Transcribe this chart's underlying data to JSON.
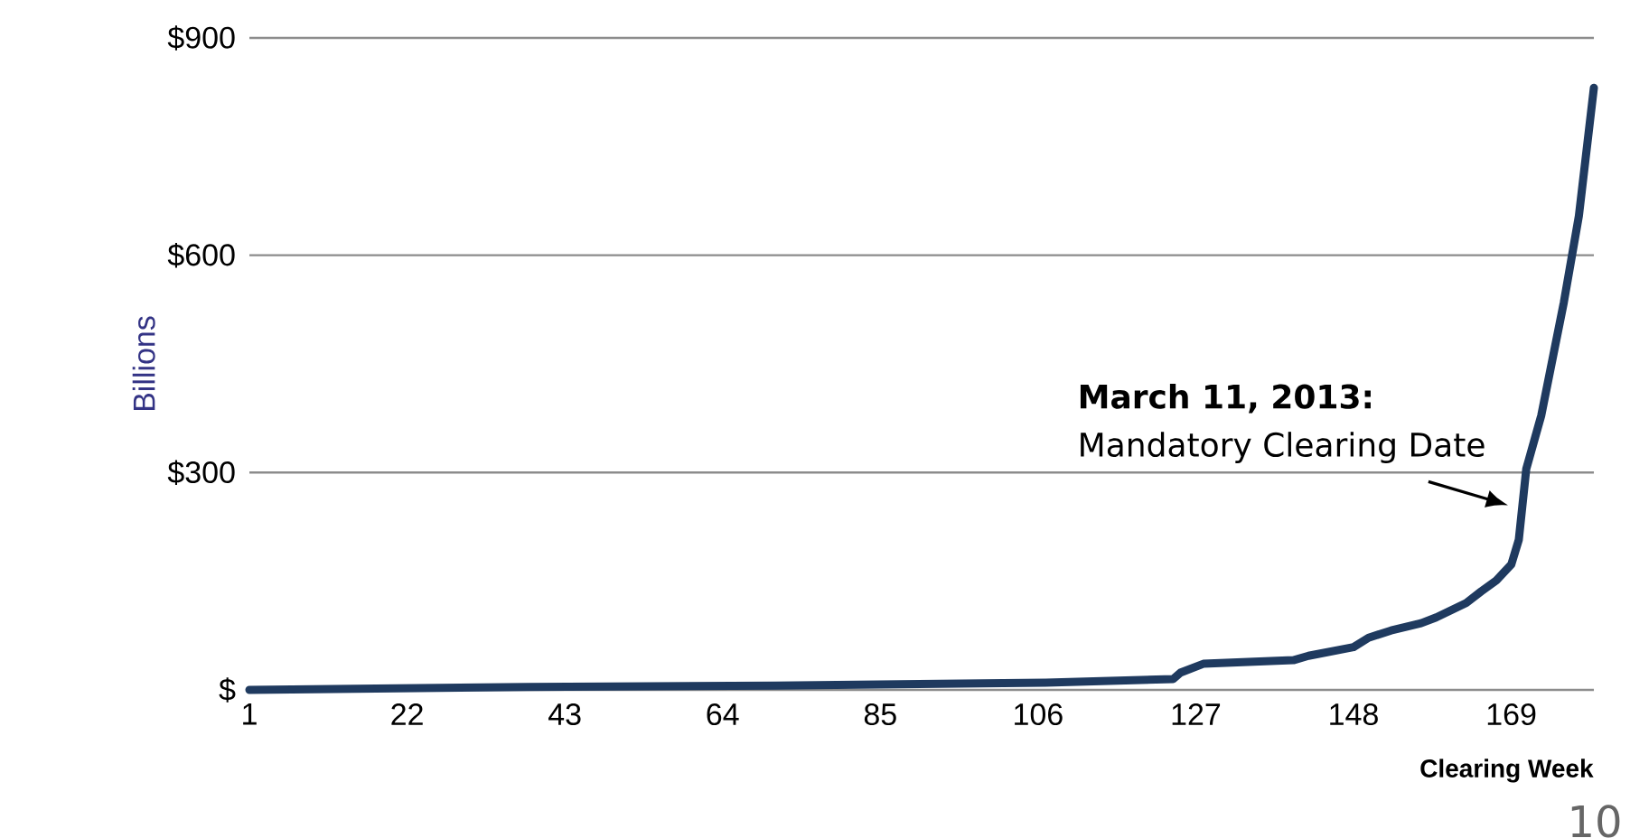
{
  "chart_data": {
    "type": "line",
    "ylabel": "Billions",
    "xlabel": "Clearing Week",
    "x": [
      1,
      38,
      71,
      107,
      124,
      125,
      128,
      140,
      142,
      148,
      150,
      153,
      157,
      159,
      163,
      165,
      167,
      169,
      170,
      171,
      173,
      176,
      178,
      180
    ],
    "series": [
      {
        "color": "#1f3a5f",
        "values": [
          0,
          4,
          6,
          10,
          15,
          24,
          36,
          41,
          47,
          59,
          72,
          82,
          92,
          100,
          120,
          136,
          151,
          173,
          207,
          305,
          379,
          535,
          654,
          831
        ]
      }
    ],
    "xlim": [
      1,
      180
    ],
    "xticks": [
      1,
      22,
      43,
      64,
      85,
      106,
      127,
      148,
      169
    ],
    "ylim": [
      0,
      900
    ],
    "yticks": [
      {
        "value": 0,
        "label": "$"
      },
      {
        "value": 300,
        "label": "$300"
      },
      {
        "value": 600,
        "label": "$600"
      },
      {
        "value": 900,
        "label": "$900"
      }
    ],
    "grid": "y",
    "marker": "none",
    "line_style": "solid",
    "annotations": [
      "March 11, 2013:",
      {
        "text": "Mandatory Clearing Date",
        "x": 170,
        "y": 255
      },
      "10"
    ]
  }
}
